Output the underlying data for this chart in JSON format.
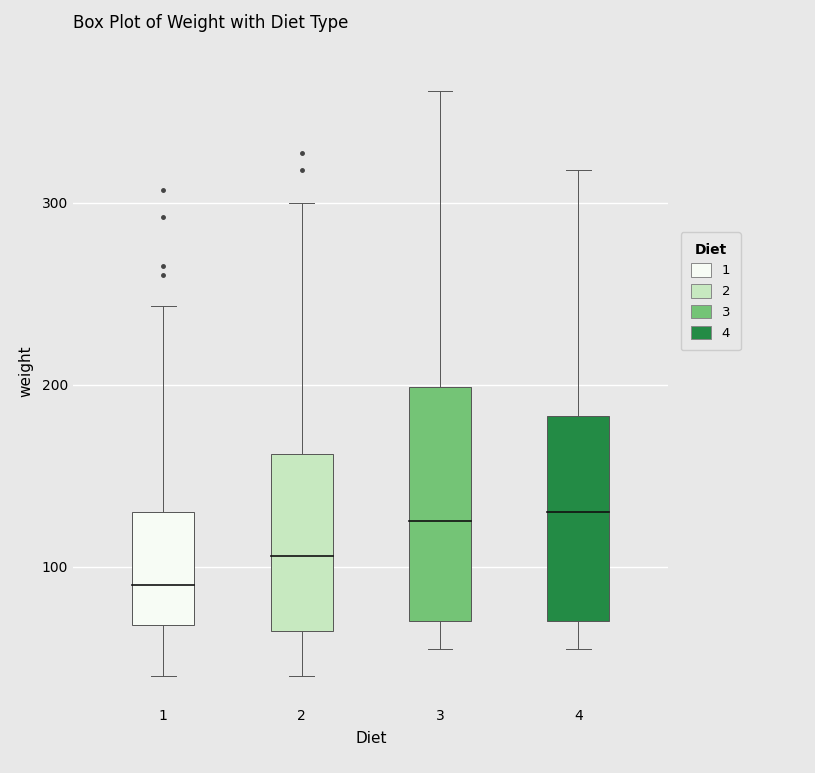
{
  "title": "Box Plot of Weight with Diet Type",
  "xlabel": "Diet",
  "ylabel": "weight",
  "categories": [
    1,
    2,
    3,
    4
  ],
  "cat_labels": [
    "1",
    "2",
    "3",
    "4"
  ],
  "colors": [
    "#f7fcf5",
    "#c7e9c0",
    "#74c476",
    "#238b45"
  ],
  "background_color": "#e8e8e8",
  "grid_color": "#ffffff",
  "ylim": [
    25,
    390
  ],
  "yticks": [
    100,
    200,
    300
  ],
  "box_stats": [
    {
      "med": 90,
      "q1": 68,
      "q3": 130,
      "whislo": 40,
      "whishi": 243,
      "fliers": [
        260,
        265,
        292,
        307
      ]
    },
    {
      "med": 106,
      "q1": 65,
      "q3": 162,
      "whislo": 40,
      "whishi": 300,
      "fliers": [
        318,
        327
      ]
    },
    {
      "med": 125,
      "q1": 70,
      "q3": 199,
      "whislo": 55,
      "whishi": 361,
      "fliers": []
    },
    {
      "med": 130,
      "q1": 70,
      "q3": 183,
      "whislo": 55,
      "whishi": 318,
      "fliers": []
    }
  ],
  "legend_labels": [
    "1",
    "2",
    "3",
    "4"
  ],
  "legend_title": "Diet",
  "title_fontsize": 12,
  "axis_label_fontsize": 11,
  "tick_fontsize": 10
}
